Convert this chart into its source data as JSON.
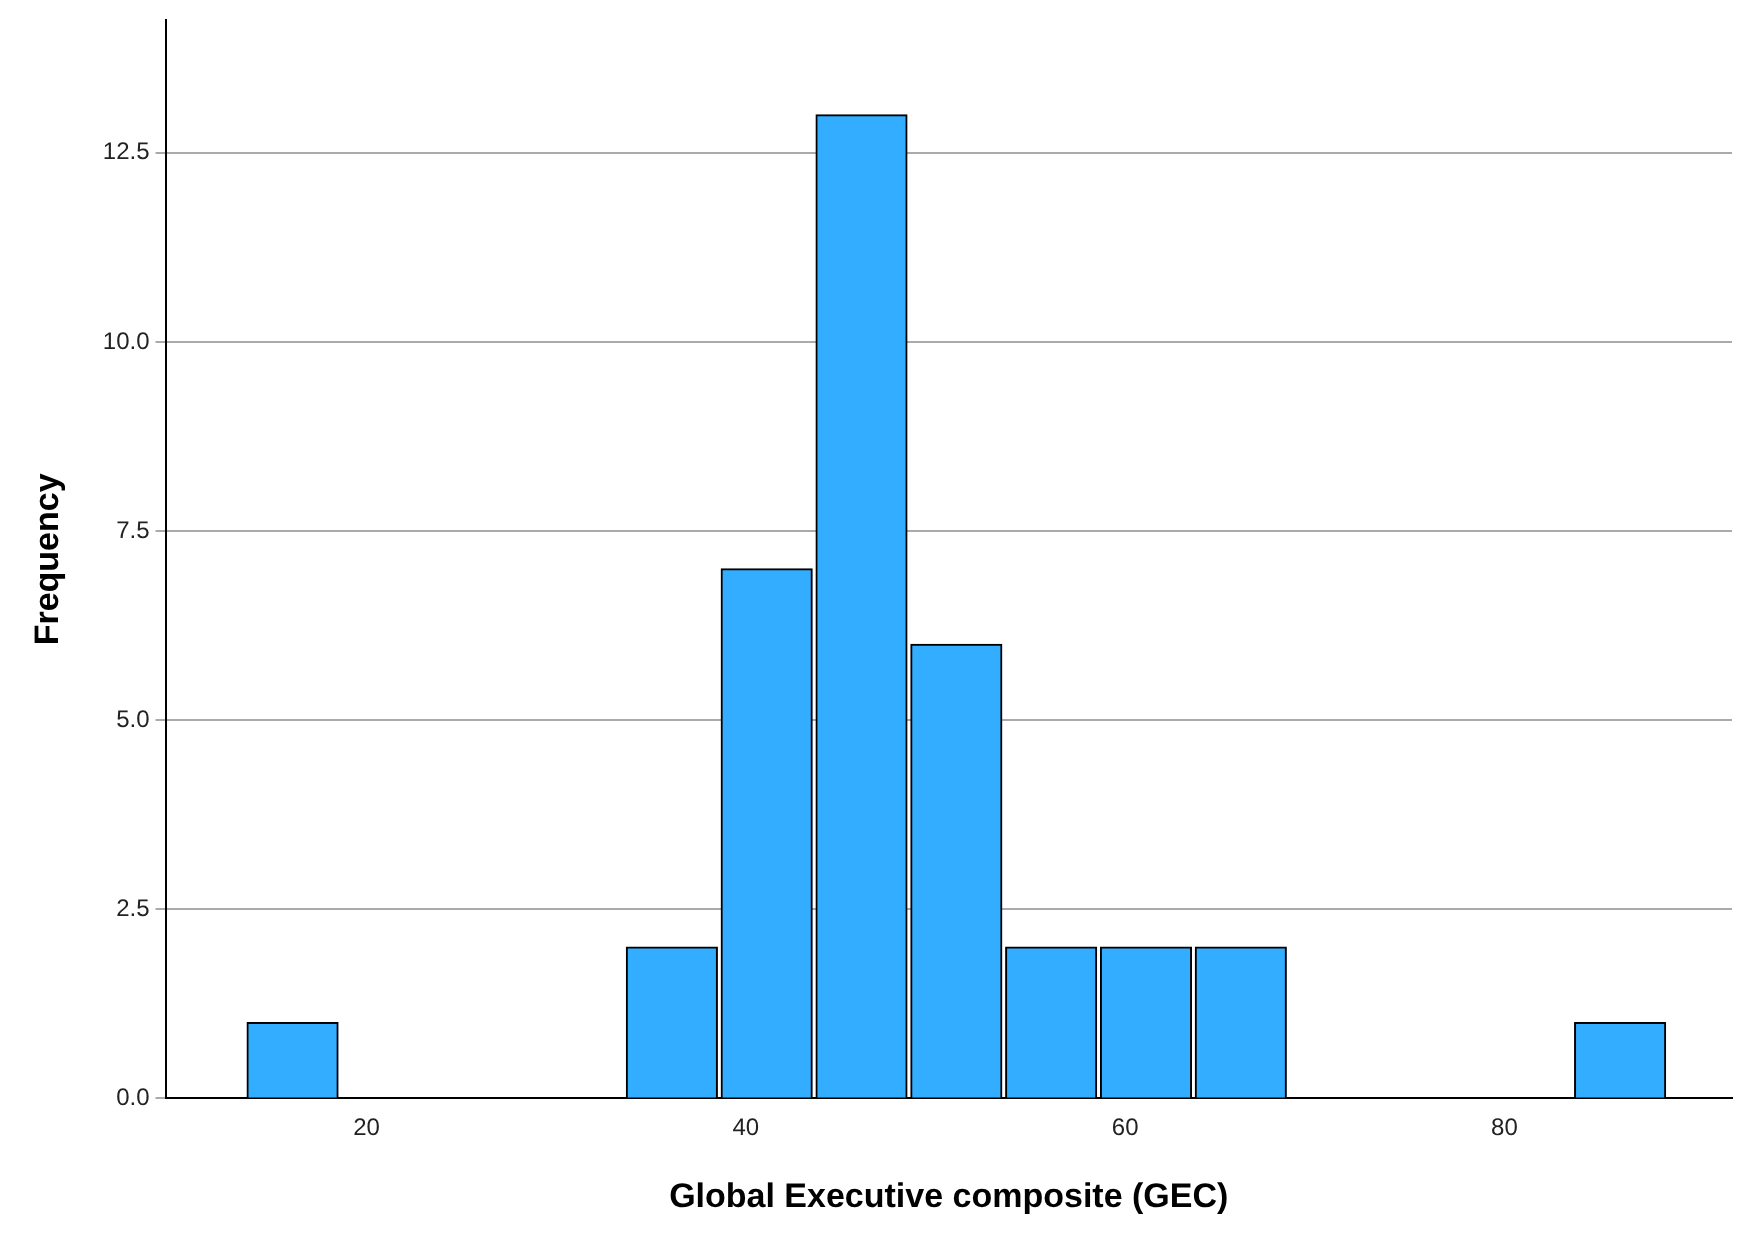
{
  "chart_data": {
    "type": "histogram",
    "xlabel": "Global Executive composite (GEC)",
    "ylabel": "Frequency",
    "bins": [
      13.6,
      18.6,
      23.6,
      28.6,
      33.6,
      38.6,
      43.6,
      48.6,
      53.6,
      58.6,
      63.6,
      68.6,
      73.6,
      78.6,
      83.6,
      88.6
    ],
    "values": [
      1,
      0,
      0,
      0,
      2,
      7,
      13,
      6,
      2,
      2,
      2,
      0,
      0,
      0,
      1
    ],
    "color": "#33adff",
    "xlim": [
      9.4,
      92
    ],
    "xticks": [
      20,
      40,
      60,
      80
    ],
    "ylim": [
      0,
      14.25
    ],
    "yticks": [
      {
        "value": 0,
        "label": "0.0"
      },
      {
        "value": 2.5,
        "label": "2.5"
      },
      {
        "value": 5,
        "label": "5.0"
      },
      {
        "value": 7.5,
        "label": "7.5"
      },
      {
        "value": 10,
        "label": "10.0"
      },
      {
        "value": 12.5,
        "label": "12.5"
      }
    ],
    "grid": "y",
    "legend": false
  }
}
